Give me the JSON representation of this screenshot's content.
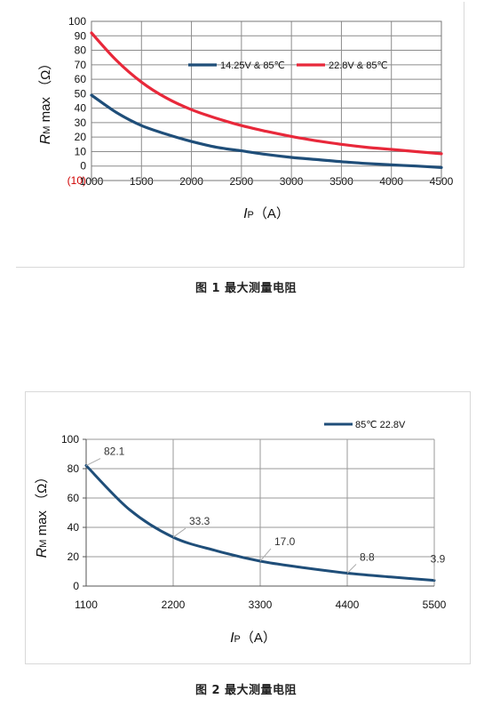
{
  "chart_data": [
    {
      "type": "line",
      "caption": "图 1 最大测量电阻",
      "ylabel_main": "R",
      "ylabel_sub": "M",
      "ylabel_rest": " max （Ω）",
      "xlabel_main": "I",
      "xlabel_sub": "P",
      "xlabel_rest": "（A）",
      "xlim": [
        1000,
        4500
      ],
      "ylim": [
        -10,
        100
      ],
      "xticks": [
        "1000",
        "1500",
        "2000",
        "2500",
        "3000",
        "3500",
        "4000",
        "4500"
      ],
      "yticks": [
        "(10)",
        "0",
        "10",
        "20",
        "30",
        "40",
        "50",
        "60",
        "70",
        "80",
        "90",
        "100"
      ],
      "ytick_values": [
        -10,
        0,
        10,
        20,
        30,
        40,
        50,
        60,
        70,
        80,
        90,
        100
      ],
      "grid": true,
      "legend_position": "top-right",
      "series": [
        {
          "name": "14.25V & 85℃",
          "color": "#1f4e79",
          "x": [
            1000,
            1250,
            1500,
            1750,
            2000,
            2250,
            2500,
            2750,
            3000,
            3250,
            3500,
            3750,
            4000,
            4250,
            4500
          ],
          "y": [
            49,
            37,
            28,
            22,
            17,
            13,
            10.5,
            8,
            6,
            4.5,
            3,
            1.8,
            0.8,
            0,
            -1
          ]
        },
        {
          "name": "22.8V & 85℃",
          "color": "#e8283a",
          "x": [
            1000,
            1250,
            1500,
            1750,
            2000,
            2250,
            2500,
            2750,
            3000,
            3250,
            3500,
            3750,
            4000,
            4250,
            4500
          ],
          "y": [
            92,
            73,
            58,
            47,
            39,
            33,
            28,
            24,
            20.5,
            17.5,
            15,
            13,
            11.5,
            10,
            8.5
          ]
        }
      ]
    },
    {
      "type": "line",
      "caption": "图 2 最大测量电阻",
      "ylabel_main": "R",
      "ylabel_sub": "M",
      "ylabel_rest": " max （Ω）",
      "xlabel_main": "I",
      "xlabel_sub": "P",
      "xlabel_rest": "（A）",
      "xlim": [
        1100,
        5500
      ],
      "ylim": [
        0,
        100
      ],
      "xticks": [
        "1100",
        "2200",
        "3300",
        "4400",
        "5500"
      ],
      "yticks": [
        "0",
        "20",
        "40",
        "60",
        "80",
        "100"
      ],
      "ytick_values": [
        0,
        20,
        40,
        60,
        80,
        100
      ],
      "grid": true,
      "legend_position": "top-right",
      "series": [
        {
          "name": "85℃ 22.8V",
          "color": "#1f4e79",
          "x": [
            1100,
            1650,
            2200,
            2750,
            3300,
            3850,
            4400,
            4950,
            5500
          ],
          "y": [
            82.1,
            52,
            33.3,
            24,
            17.0,
            12.5,
            8.8,
            6.2,
            3.9
          ]
        }
      ],
      "data_labels": [
        {
          "x": 1100,
          "y": 82.1,
          "text": "82.1"
        },
        {
          "x": 2200,
          "y": 33.3,
          "text": "33.3"
        },
        {
          "x": 3300,
          "y": 17.0,
          "text": "17.0"
        },
        {
          "x": 4400,
          "y": 8.8,
          "text": "8.8"
        },
        {
          "x": 5500,
          "y": 3.9,
          "text": "3.9"
        }
      ]
    }
  ]
}
